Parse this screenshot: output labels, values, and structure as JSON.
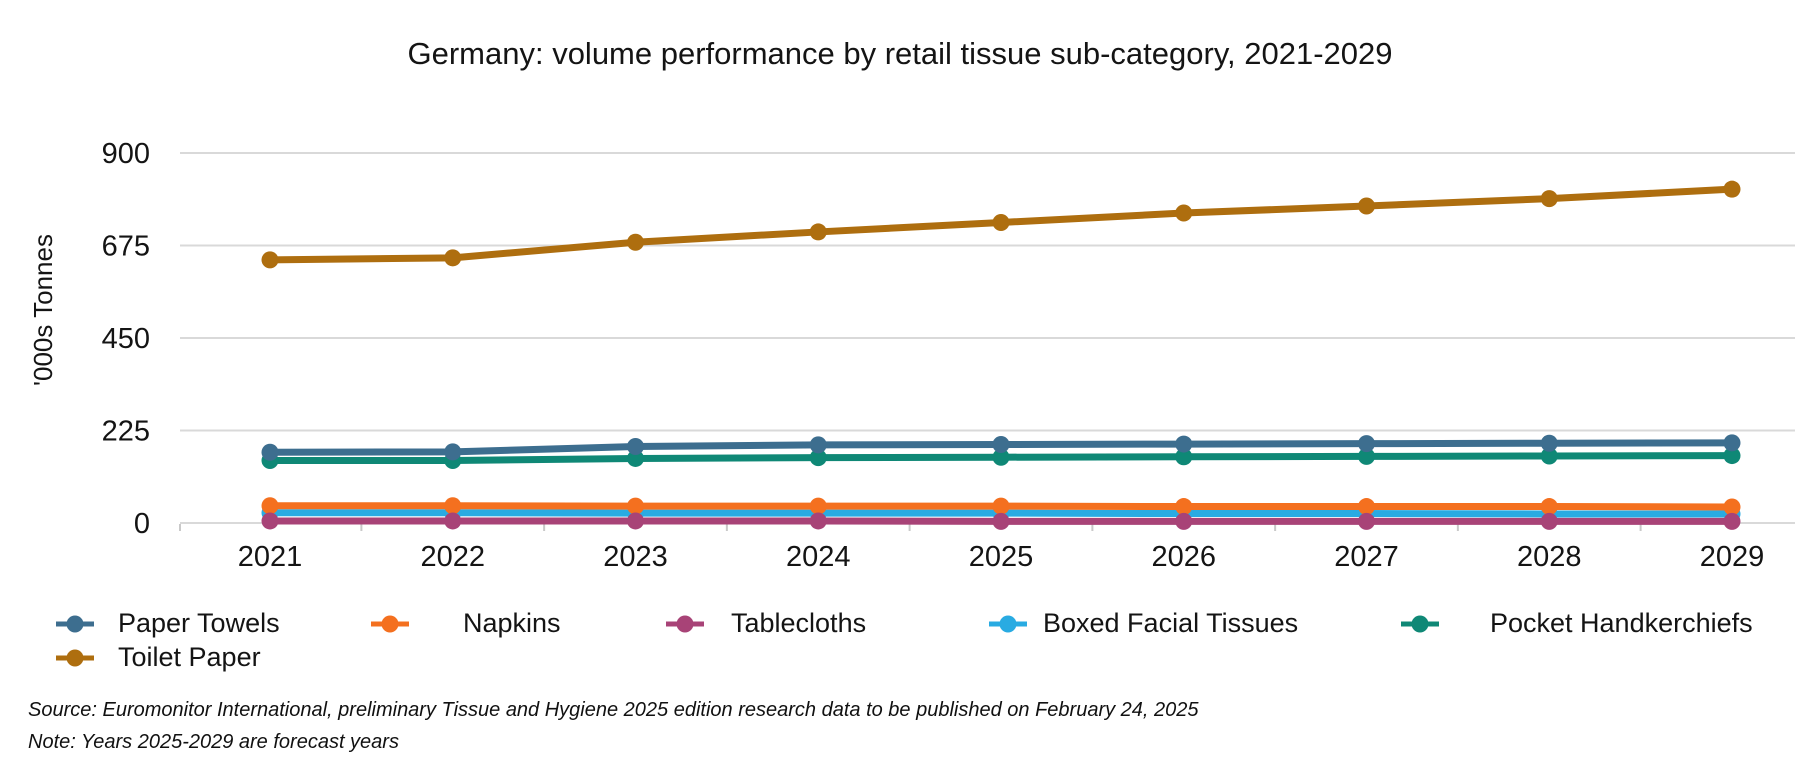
{
  "title": "Germany: volume performance by retail tissue sub-category, 2021-2029",
  "source_note": "Source: Euromonitor International, preliminary Tissue and Hygiene 2025 edition research data to be published on February 24, 2025",
  "forecast_note": "Note: Years 2025-2029 are forecast years",
  "chart_data": {
    "type": "line",
    "title": "Germany: volume performance by retail tissue sub-category, 2021-2029",
    "xlabel": "",
    "ylabel": "'000s Tonnes",
    "categories": [
      "2021",
      "2022",
      "2023",
      "2024",
      "2025",
      "2026",
      "2027",
      "2028",
      "2029"
    ],
    "y_ticks": [
      0,
      225,
      450,
      675,
      900
    ],
    "ylim": [
      0,
      900
    ],
    "grid": true,
    "legend_position": "bottom",
    "forecast_years": "2025-2029",
    "series": [
      {
        "name": "Paper Towels",
        "color": "#3D6E8F",
        "values": [
          172,
          173,
          186,
          190,
          191,
          192,
          193,
          194,
          195
        ]
      },
      {
        "name": "Napkins",
        "color": "#F4701F",
        "values": [
          42,
          42,
          41,
          41,
          41,
          40,
          40,
          40,
          39
        ]
      },
      {
        "name": "Tablecloths",
        "color": "#A84377",
        "values": [
          5,
          5,
          5,
          5,
          4,
          4,
          4,
          4,
          4
        ]
      },
      {
        "name": "Boxed Facial Tissues",
        "color": "#29ABE2",
        "values": [
          25,
          25,
          24,
          24,
          24,
          23,
          23,
          22,
          22
        ]
      },
      {
        "name": "Pocket Handkerchiefs",
        "color": "#0F8876",
        "values": [
          152,
          152,
          157,
          159,
          160,
          161,
          162,
          163,
          164
        ]
      },
      {
        "name": "Toilet Paper",
        "color": "#AE6E0F",
        "values": [
          640,
          645,
          683,
          708,
          731,
          754,
          771,
          789,
          812
        ]
      }
    ]
  }
}
